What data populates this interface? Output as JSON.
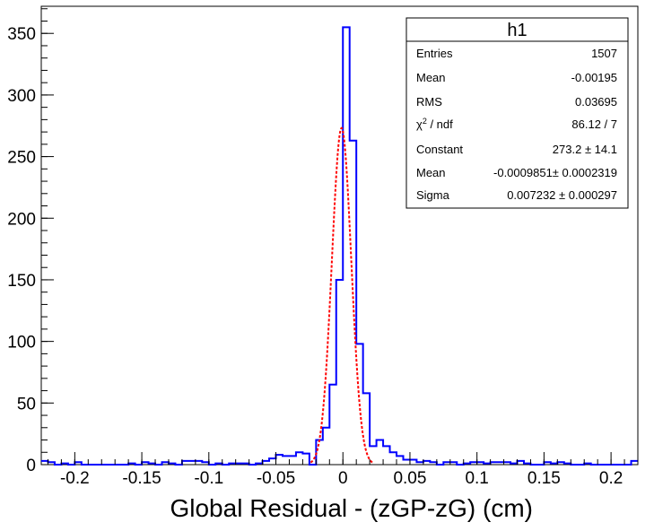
{
  "chart_data": {
    "type": "bar",
    "title": "",
    "xlabel": "Global Residual - (zGP-zG) (cm)",
    "ylabel": "",
    "xlim": [
      -0.225,
      0.22
    ],
    "ylim": [
      0,
      372
    ],
    "bin_width": 0.005,
    "x_ticks": [
      -0.2,
      -0.15,
      -0.1,
      -0.05,
      0,
      0.05,
      0.1,
      0.15,
      0.2
    ],
    "x_tick_labels": [
      "-0.2",
      "-0.15",
      "-0.1",
      "-0.05",
      "0",
      "0.05",
      "0.1",
      "0.15",
      "0.2"
    ],
    "y_ticks": [
      0,
      50,
      100,
      150,
      200,
      250,
      300,
      350
    ],
    "y_tick_labels": [
      "0",
      "50",
      "100",
      "150",
      "200",
      "250",
      "300",
      "350"
    ],
    "histogram_color": "#0000ff",
    "fit_color": "#ff0000",
    "series": [
      {
        "name": "h1",
        "bin_lower_edges": [
          -0.225,
          -0.22,
          -0.215,
          -0.21,
          -0.205,
          -0.2,
          -0.195,
          -0.19,
          -0.185,
          -0.18,
          -0.175,
          -0.17,
          -0.165,
          -0.16,
          -0.155,
          -0.15,
          -0.145,
          -0.14,
          -0.135,
          -0.13,
          -0.125,
          -0.12,
          -0.115,
          -0.11,
          -0.105,
          -0.1,
          -0.095,
          -0.09,
          -0.085,
          -0.08,
          -0.075,
          -0.07,
          -0.065,
          -0.06,
          -0.055,
          -0.05,
          -0.045,
          -0.04,
          -0.035,
          -0.03,
          -0.025,
          -0.02,
          -0.015,
          -0.01,
          -0.005,
          0,
          0.005,
          0.01,
          0.015,
          0.02,
          0.025,
          0.03,
          0.035,
          0.04,
          0.045,
          0.05,
          0.055,
          0.06,
          0.065,
          0.07,
          0.075,
          0.08,
          0.085,
          0.09,
          0.095,
          0.1,
          0.105,
          0.11,
          0.115,
          0.12,
          0.125,
          0.13,
          0.135,
          0.14,
          0.145,
          0.15,
          0.155,
          0.16,
          0.165,
          0.17,
          0.175,
          0.18,
          0.185,
          0.19,
          0.195,
          0.2,
          0.205,
          0.21,
          0.215
        ],
        "values": [
          3,
          2,
          0,
          1,
          0,
          2,
          0,
          0,
          0,
          0,
          0,
          0,
          0,
          1,
          0,
          2,
          1,
          0,
          2,
          1,
          0,
          3,
          3,
          3,
          2,
          0,
          1,
          0,
          1,
          1,
          1,
          0,
          1,
          3,
          5,
          8,
          7,
          7,
          10,
          9,
          0,
          20,
          30,
          65,
          150,
          355,
          263,
          98,
          58,
          15,
          20,
          15,
          10,
          7,
          4,
          4,
          2,
          3,
          2,
          0,
          2,
          2,
          0,
          1,
          2,
          2,
          1,
          2,
          2,
          2,
          1,
          3,
          1,
          0,
          0,
          2,
          1,
          2,
          1,
          0,
          0,
          1,
          0,
          0,
          0,
          0,
          0,
          0,
          3
        ]
      }
    ],
    "fit": {
      "function": "gaus",
      "constant": 273.2,
      "mean": -0.0009851,
      "sigma": 0.007232
    }
  },
  "stats_box": {
    "title": "h1",
    "rows": [
      {
        "label": "Entries",
        "value": "1507"
      },
      {
        "label": "Mean",
        "value": "-0.00195"
      },
      {
        "label": "RMS",
        "value": "0.03695"
      },
      {
        "label": "χ² / ndf",
        "value": "86.12 / 7"
      },
      {
        "label": "Constant",
        "value": "273.2 ± 14.1"
      },
      {
        "label": "Mean",
        "value": "-0.0009851± 0.0002319"
      },
      {
        "label": "Sigma",
        "value": "0.007232 ± 0.000297"
      }
    ]
  }
}
